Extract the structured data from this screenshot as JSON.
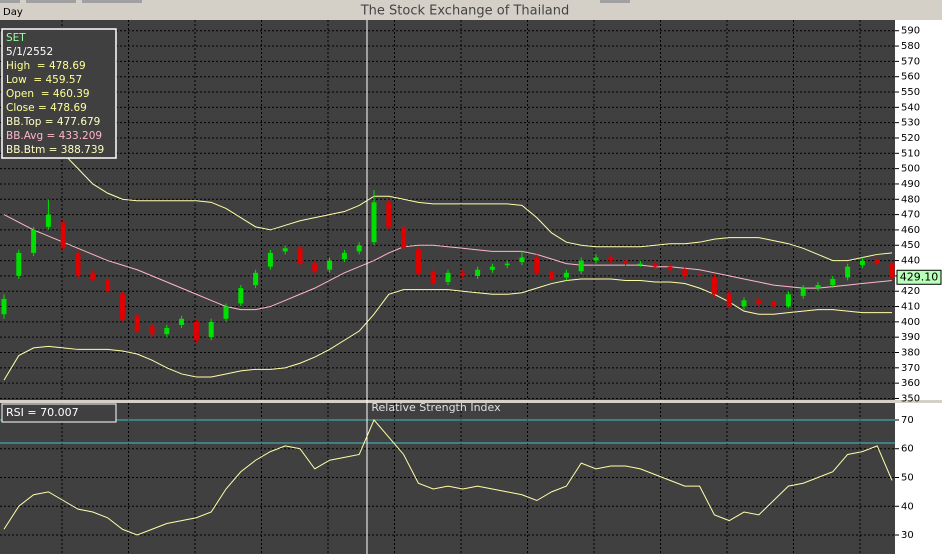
{
  "header": {
    "period": "Day"
  },
  "chart_data": [
    {
      "type": "candlestick",
      "title": "The Stock Exchange of Thailand",
      "info_lines": [
        {
          "text": "SET",
          "color": "#9dff9d"
        },
        {
          "text": "5/1/2552",
          "color": "#ffffff"
        },
        {
          "text": "High  = 478.69",
          "color": "#ffff99"
        },
        {
          "text": "Low  = 459.57",
          "color": "#ffff99"
        },
        {
          "text": "Open  = 460.39",
          "color": "#ffff99"
        },
        {
          "text": "Close = 478.69",
          "color": "#ffff99"
        },
        {
          "text": "BB.Top = 477.679",
          "color": "#ffffc0"
        },
        {
          "text": "BB.Avg = 433.209",
          "color": "#ffb6c8"
        },
        {
          "text": "BB.Btm = 388.739",
          "color": "#ffffc0"
        }
      ],
      "price_tag": "429.10",
      "up_color": "#00e000",
      "down_color": "#e00000",
      "ohlc": {
        "open": [
          405,
          430,
          445,
          462,
          465,
          445,
          432,
          428,
          418,
          404,
          397,
          392,
          398,
          400,
          390,
          402,
          412,
          424,
          436,
          446,
          448,
          438,
          434,
          441,
          446,
          452,
          478,
          462,
          447,
          433,
          426,
          432,
          430,
          434,
          437,
          439,
          442,
          433,
          429,
          433,
          440,
          442,
          440,
          438,
          438,
          436,
          434,
          431,
          429,
          419,
          410,
          414,
          413,
          410,
          417,
          422,
          424,
          429,
          437,
          441,
          438
        ],
        "high": [
          418,
          447,
          462,
          480,
          468,
          447,
          434,
          430,
          420,
          406,
          399,
          398,
          404,
          402,
          402,
          412,
          424,
          434,
          447,
          450,
          450,
          440,
          442,
          447,
          452,
          486,
          480,
          464,
          449,
          435,
          434,
          434,
          436,
          438,
          440,
          446,
          444,
          435,
          434,
          442,
          444,
          444,
          442,
          440,
          440,
          438,
          436,
          433,
          431,
          421,
          416,
          416,
          415,
          420,
          424,
          426,
          430,
          438,
          442,
          443,
          440
        ],
        "low": [
          402,
          428,
          443,
          460,
          446,
          428,
          426,
          418,
          400,
          392,
          390,
          390,
          396,
          386,
          388,
          400,
          410,
          422,
          434,
          444,
          436,
          431,
          432,
          439,
          444,
          450,
          460,
          446,
          430,
          423,
          424,
          428,
          428,
          432,
          435,
          437,
          430,
          426,
          427,
          431,
          438,
          438,
          436,
          436,
          434,
          432,
          428,
          428,
          416,
          408,
          408,
          410,
          408,
          409,
          415,
          420,
          422,
          427,
          435,
          436,
          427
        ],
        "close": [
          415,
          445,
          460,
          470,
          448,
          430,
          428,
          420,
          402,
          394,
          392,
          396,
          402,
          388,
          400,
          410,
          422,
          432,
          445,
          448,
          438,
          433,
          440,
          445,
          450,
          478,
          462,
          448,
          432,
          425,
          432,
          430,
          434,
          436,
          438,
          442,
          432,
          428,
          432,
          440,
          442,
          440,
          438,
          438,
          436,
          434,
          430,
          430,
          418,
          410,
          414,
          412,
          410,
          418,
          422,
          424,
          428,
          436,
          440,
          438,
          429.1
        ]
      },
      "bands": [
        {
          "color": "#ffffa8",
          "values": [
            540,
            532,
            525,
            518,
            510,
            500,
            490,
            484,
            480,
            479,
            479,
            479,
            479,
            479,
            478,
            474,
            468,
            462,
            460,
            463,
            466,
            468,
            470,
            472,
            476,
            482,
            482,
            480,
            478,
            477,
            477,
            477,
            477,
            477,
            477,
            476,
            468,
            458,
            452,
            450,
            449,
            449,
            449,
            449,
            450,
            451,
            451,
            452,
            454,
            455,
            455,
            455,
            453,
            451,
            448,
            444,
            440,
            440,
            442,
            444,
            445
          ]
        },
        {
          "color": "#ffb6c8",
          "values": [
            470,
            465,
            460,
            456,
            452,
            448,
            444,
            440,
            437,
            434,
            430,
            426,
            422,
            418,
            414,
            410,
            408,
            408,
            410,
            414,
            418,
            422,
            427,
            432,
            436,
            440,
            445,
            449,
            450,
            450,
            449,
            448,
            447,
            446,
            446,
            446,
            444,
            441,
            438,
            437,
            437,
            437,
            437,
            437,
            436,
            436,
            435,
            434,
            432,
            430,
            428,
            426,
            424,
            423,
            422,
            422,
            423,
            424,
            425,
            426,
            427
          ]
        },
        {
          "color": "#ffffa8",
          "values": [
            362,
            378,
            383,
            384,
            383,
            382,
            382,
            382,
            381,
            379,
            375,
            370,
            366,
            364,
            364,
            366,
            368,
            369,
            369,
            370,
            373,
            377,
            382,
            388,
            394,
            405,
            418,
            421,
            421,
            421,
            421,
            420,
            419,
            418,
            418,
            419,
            422,
            425,
            427,
            428,
            428,
            428,
            427,
            427,
            426,
            426,
            425,
            422,
            418,
            413,
            407,
            405,
            405,
            406,
            407,
            408,
            408,
            407,
            406,
            406,
            406
          ]
        }
      ],
      "ylim": [
        349,
        597
      ],
      "yticks": [
        590,
        580,
        570,
        560,
        550,
        540,
        530,
        520,
        510,
        500,
        490,
        480,
        470,
        460,
        450,
        440,
        430,
        420,
        410,
        400,
        390,
        380,
        370,
        360,
        350
      ],
      "grid": true
    },
    {
      "type": "line",
      "title": "Relative Strength Index",
      "label": "RSI = 70.007",
      "color": "#ffffa8",
      "values": [
        32,
        40,
        44,
        45,
        42,
        39,
        38,
        36,
        32,
        30,
        32,
        34,
        35,
        36,
        38,
        46,
        52,
        56,
        59,
        61,
        60,
        53,
        56,
        57,
        58,
        70,
        64,
        58,
        48,
        46,
        47,
        46,
        47,
        46,
        45,
        44,
        42,
        45,
        47,
        55,
        53,
        54,
        54,
        53,
        51,
        49,
        47,
        47,
        37,
        35,
        38,
        37,
        42,
        47,
        48,
        50,
        52,
        58,
        59,
        61,
        49
      ],
      "reference_lines": [
        70,
        62
      ],
      "reference_color": "#40c0c0",
      "ylim": [
        23.4,
        75.9
      ],
      "yticks": [
        70,
        60,
        50,
        40,
        30
      ],
      "grid": true
    }
  ]
}
